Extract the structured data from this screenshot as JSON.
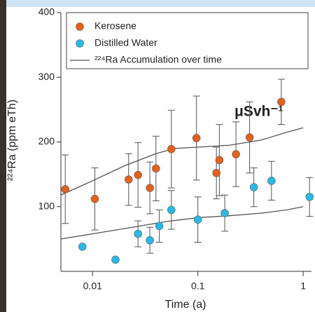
{
  "chart_data": {
    "type": "scatter",
    "log_x": true,
    "xlabel": "Time (a)",
    "ylabel": "²²⁴Ra (ppm eTh)",
    "annotation": "μSvh⁻¹",
    "xlim": [
      0.005,
      1.2
    ],
    "xticks": [
      0.01,
      0.1,
      1
    ],
    "ylim": [
      0,
      400
    ],
    "yticks": [
      100,
      200,
      300,
      400
    ],
    "legend": "top-left",
    "series": [
      {
        "name": "Kerosene",
        "color": "#e0621e",
        "x": [
          0.0055,
          0.0105,
          0.022,
          0.027,
          0.035,
          0.04,
          0.056,
          0.097,
          0.15,
          0.16,
          0.23,
          0.31,
          0.62
        ],
        "values": [
          127,
          112,
          142,
          149,
          129,
          159,
          189,
          206,
          152,
          172,
          181,
          207,
          262
        ],
        "errors": [
          53,
          48,
          40,
          50,
          40,
          50,
          60,
          65,
          40,
          55,
          50,
          55,
          35
        ]
      },
      {
        "name": "Distilled Water",
        "color": "#2bb8e2",
        "x": [
          0.008,
          0.0165,
          0.027,
          0.035,
          0.043,
          0.056,
          0.1,
          0.18,
          0.34,
          0.5,
          1.15
        ],
        "values": [
          38,
          18,
          58,
          48,
          70,
          95,
          80,
          90,
          130,
          140,
          115
        ],
        "errors": [
          null,
          null,
          20,
          20,
          25,
          30,
          35,
          28,
          30,
          30,
          30
        ]
      }
    ],
    "accumulation": {
      "name": "²²⁴Ra Accumulation over time",
      "color": "#555555",
      "curves": [
        {
          "x": [
            0.005,
            0.01,
            0.02,
            0.04,
            0.06,
            0.1,
            0.2,
            0.4,
            0.7,
            1.0
          ],
          "values": [
            118,
            140,
            163,
            182,
            190,
            192,
            195,
            203,
            215,
            222
          ]
        },
        {
          "x": [
            0.005,
            0.01,
            0.02,
            0.05,
            0.1,
            0.2,
            0.4,
            0.7,
            1.0
          ],
          "values": [
            50,
            58,
            66,
            77,
            83,
            86,
            90,
            95,
            100
          ]
        }
      ]
    }
  }
}
